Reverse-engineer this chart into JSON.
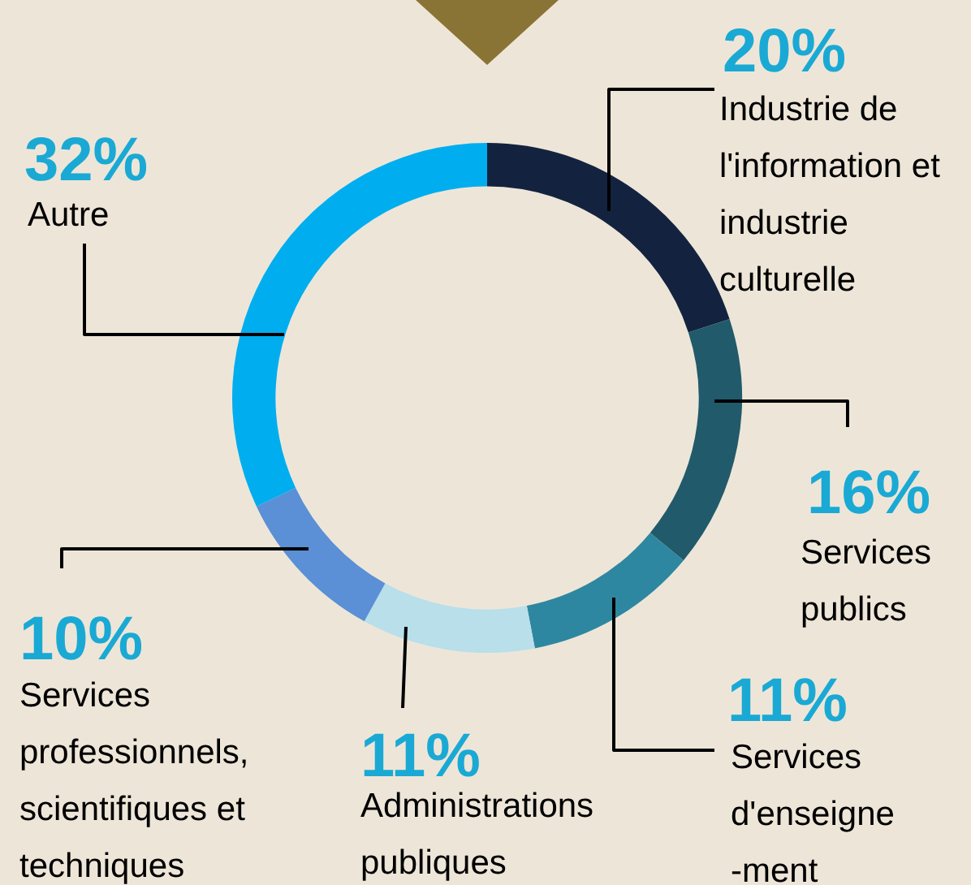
{
  "chart_data": {
    "type": "donut",
    "categories": [
      "Industrie de l'information et industrie culturelle",
      "Services publics",
      "Services d'enseigne-ment",
      "Administrations publiques",
      "Services professionnels, scientifiques et techniques",
      "Autre"
    ],
    "values": [
      20,
      16,
      11,
      11,
      10,
      32
    ],
    "value_labels": [
      "20%",
      "16%",
      "11%",
      "11%",
      "10%",
      "32%"
    ],
    "colors": [
      "#13233f",
      "#215a6b",
      "#2e87a0",
      "#b8dfea",
      "#5b8fd6",
      "#00aeef"
    ],
    "legend": false
  }
}
